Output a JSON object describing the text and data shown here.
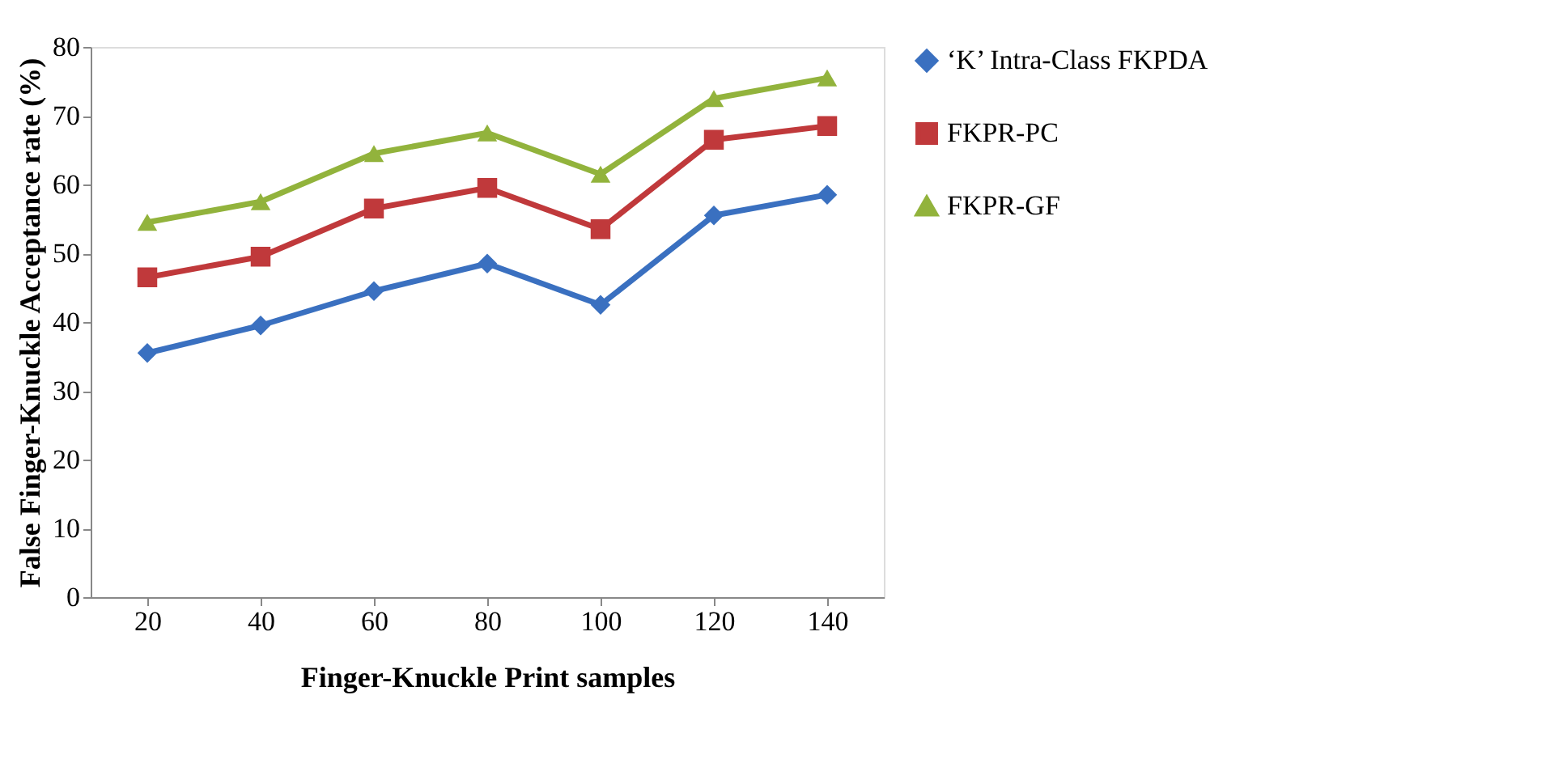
{
  "chart_data": {
    "type": "line",
    "xlabel": "Finger-Knuckle Print samples",
    "ylabel": "False Finger-Knuckle Acceptance rate (%)",
    "categories": [
      "20",
      "40",
      "60",
      "80",
      "100",
      "120",
      "140"
    ],
    "series": [
      {
        "name": "‘K’ Intra-Class FKPDA",
        "color": "#3a70c0",
        "marker": "diamond",
        "values": [
          35.5,
          39.5,
          44.5,
          48.5,
          42.5,
          55.5,
          58.5
        ]
      },
      {
        "name": "FKPR-PC",
        "color": "#c0393b",
        "marker": "square",
        "values": [
          46.5,
          49.5,
          56.5,
          59.5,
          53.5,
          66.5,
          68.5
        ]
      },
      {
        "name": "FKPR-GF",
        "color": "#92b33c",
        "marker": "triangle",
        "values": [
          54.5,
          57.5,
          64.5,
          67.5,
          61.5,
          72.5,
          75.5
        ]
      }
    ],
    "ylim": [
      0,
      80
    ],
    "yticks": [
      0,
      10,
      20,
      30,
      40,
      50,
      60,
      70,
      80
    ],
    "grid": false,
    "legend": "right",
    "line_style": "solid"
  }
}
